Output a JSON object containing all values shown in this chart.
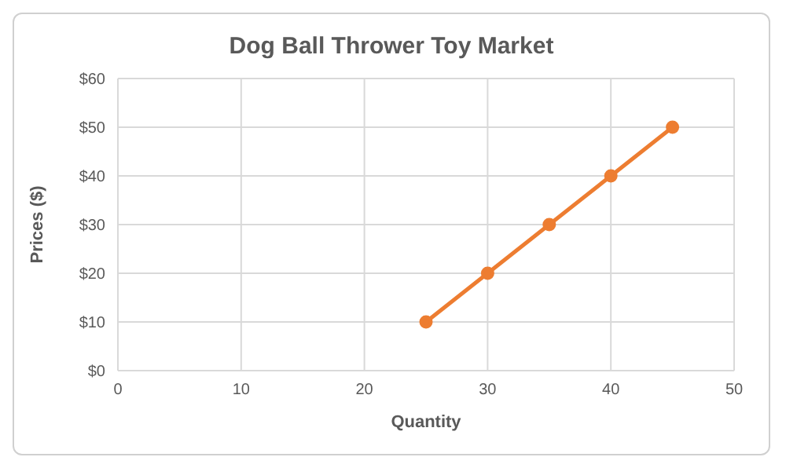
{
  "chart_data": {
    "type": "line",
    "title": "Dog Ball Thrower Toy Market",
    "xlabel": "Quantity",
    "ylabel": "Prices ($)",
    "x": [
      25,
      30,
      35,
      40,
      45
    ],
    "series": [
      {
        "color": "#ed7d31",
        "values": [
          10,
          20,
          30,
          40,
          50
        ]
      }
    ],
    "xlim": [
      0,
      50
    ],
    "xticks": [
      0,
      10,
      20,
      30,
      40,
      50
    ],
    "ylim": [
      0,
      60
    ],
    "yticks": [
      {
        "value": 0,
        "label": "$0"
      },
      {
        "value": 10,
        "label": "$10"
      },
      {
        "value": 20,
        "label": "$20"
      },
      {
        "value": 30,
        "label": "$30"
      },
      {
        "value": 40,
        "label": "$40"
      },
      {
        "value": 50,
        "label": "$50"
      },
      {
        "value": 60,
        "label": "$60"
      }
    ],
    "grid": true,
    "legend": false,
    "marker": "circle",
    "line_style": "solid"
  }
}
